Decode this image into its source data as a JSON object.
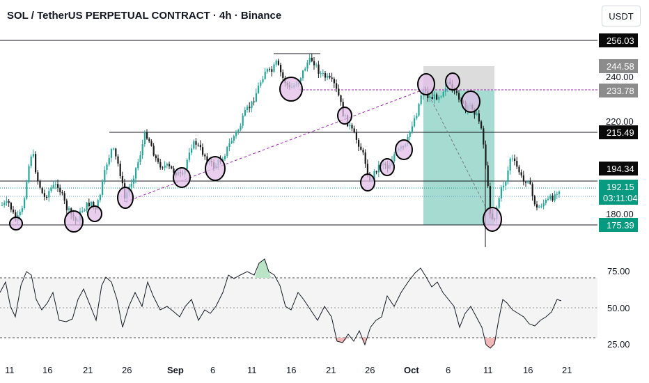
{
  "header": {
    "title": "SOL / TetherUS PERPETUAL CONTRACT · 4h · Binance",
    "currency": "USDT"
  },
  "price_axis": {
    "ticks": [
      "240.00",
      "220.00",
      "180.00"
    ],
    "tags": [
      {
        "label": "256.03",
        "style": "dark"
      },
      {
        "label": "244.58",
        "style": "gray"
      },
      {
        "label": "233.78",
        "style": "gray"
      },
      {
        "label": "215.49",
        "style": "dark"
      },
      {
        "label": "194.34",
        "style": "dark"
      },
      {
        "label": "192.15",
        "style": "green"
      },
      {
        "label": "03:11:04",
        "style": "green"
      },
      {
        "label": "175.39",
        "style": "green"
      }
    ]
  },
  "rsi_axis": {
    "ticks": [
      "75.00",
      "50.00",
      "25.00"
    ]
  },
  "date_axis": {
    "labels": [
      {
        "text": "11",
        "bold": false
      },
      {
        "text": "16",
        "bold": false
      },
      {
        "text": "21",
        "bold": false
      },
      {
        "text": "26",
        "bold": false
      },
      {
        "text": "Sep",
        "bold": true
      },
      {
        "text": "6",
        "bold": false
      },
      {
        "text": "11",
        "bold": false
      },
      {
        "text": "16",
        "bold": false
      },
      {
        "text": "21",
        "bold": false
      },
      {
        "text": "26",
        "bold": false
      },
      {
        "text": "Oct",
        "bold": true
      },
      {
        "text": "6",
        "bold": false
      },
      {
        "text": "11",
        "bold": false
      },
      {
        "text": "16",
        "bold": false
      },
      {
        "text": "21",
        "bold": false
      }
    ]
  },
  "colors": {
    "up": "#26a69a",
    "down": "#1a1a1a",
    "tag_dark": "#0a0a0a",
    "tag_gray": "#8c8c8c",
    "tag_green": "#089981",
    "circle_fill": "#e1bee7",
    "position_green": "#a5dbd0",
    "position_gray": "#dcdcdc",
    "rsi_line": "#131722",
    "trendline": "#9c27b0"
  },
  "chart_data": {
    "type": "candlestick",
    "timeframe": "4h",
    "price_levels": [
      256.03,
      244.58,
      233.78,
      215.49,
      194.34,
      192.15,
      175.39
    ],
    "current_price": 192.15,
    "bar_countdown": "03:11:04",
    "price_ticks": [
      240,
      220,
      180
    ],
    "rsi": {
      "ticks": [
        75,
        50,
        25
      ],
      "upper_band": 70,
      "lower_band": 30
    }
  }
}
